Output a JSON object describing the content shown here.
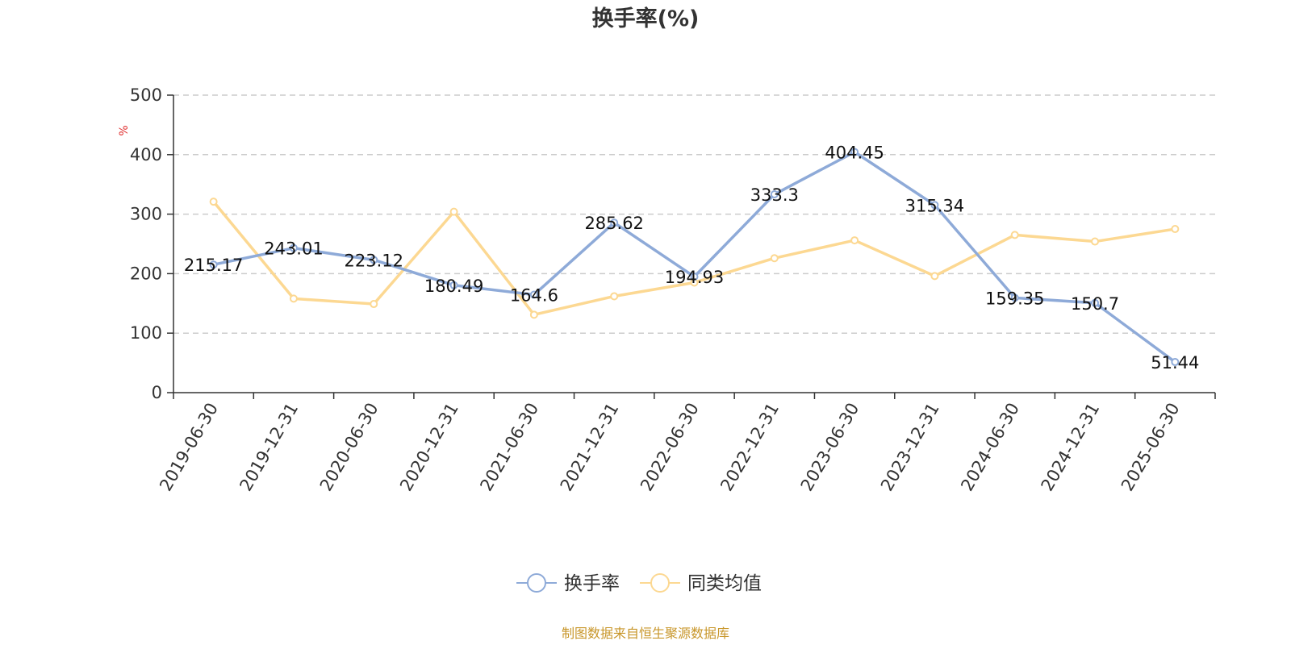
{
  "chart_data": {
    "type": "line",
    "title": "换手率(%)",
    "ylabel": "%",
    "ylim": [
      0,
      500
    ],
    "yticks": [
      0,
      100,
      200,
      300,
      400,
      500
    ],
    "grid": true,
    "legend_position": "bottom-center",
    "categories": [
      "2019-06-30",
      "2019-12-31",
      "2020-06-30",
      "2020-12-31",
      "2021-06-30",
      "2021-12-31",
      "2022-06-30",
      "2022-12-31",
      "2023-06-30",
      "2023-12-31",
      "2024-06-30",
      "2024-12-31",
      "2025-06-30"
    ],
    "series": [
      {
        "name": "换手率",
        "color": "#8eaad8",
        "show_labels": true,
        "values": [
          215.17,
          243.01,
          223.12,
          180.49,
          164.6,
          285.62,
          194.93,
          333.3,
          404.45,
          315.34,
          159.35,
          150.7,
          51.44
        ]
      },
      {
        "name": "同类均值",
        "color": "#fcd892",
        "show_labels": false,
        "values": [
          321,
          158,
          149,
          304,
          131,
          162,
          185,
          226,
          256,
          196,
          265,
          254,
          275
        ]
      }
    ],
    "source_note": "制图数据来自恒生聚源数据库",
    "source_color": "#c8962a",
    "unit_color": "#e03030"
  }
}
